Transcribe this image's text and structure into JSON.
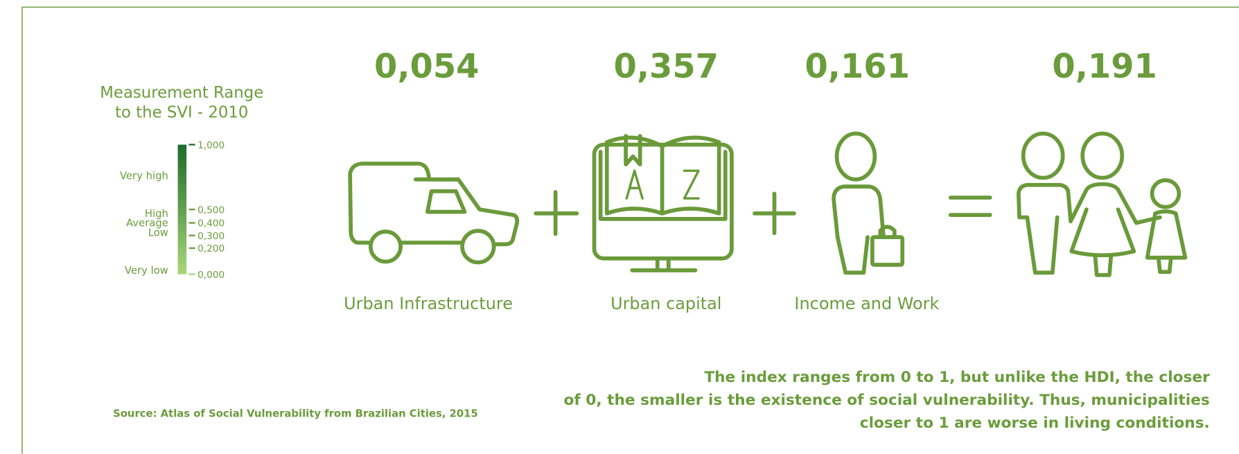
{
  "legend": {
    "title": [
      "Measurement Range",
      "to the SVI - 2010"
    ],
    "ticks": [
      "1,000",
      "0,500",
      "0,400",
      "0,300",
      "0,200",
      "0,000"
    ],
    "classes": [
      "Very high",
      "High",
      "Average",
      "Low",
      "Very low"
    ]
  },
  "components": [
    {
      "value": "0,054",
      "label": "Urban Infrastructure"
    },
    {
      "value": "0,357",
      "label": "Urban capital"
    },
    {
      "value": "0,161",
      "label": "Income and Work"
    }
  ],
  "result": {
    "value": "0,191"
  },
  "note": [
    "The index ranges from 0 to 1, but unlike the HDI, the closer",
    "of 0, the smaller is the existence of social vulnerability. Thus, municipalities",
    "closer to 1 are worse in living conditions."
  ],
  "source": "Source: Atlas of Social Vulnerability from Brazilian Cities, 2015"
}
